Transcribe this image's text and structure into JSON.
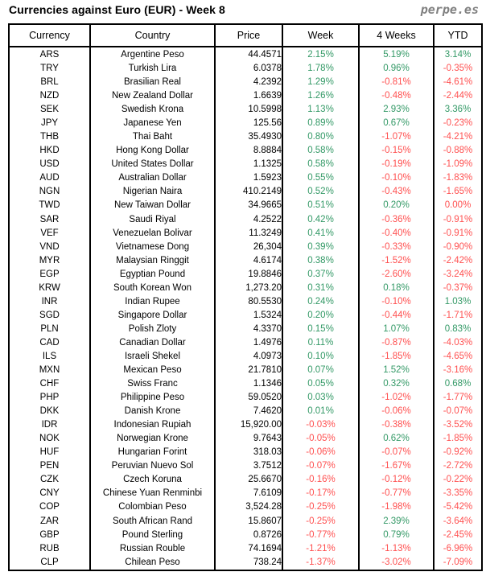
{
  "header": {
    "title": "Currencies against Euro (EUR) - Week 8",
    "logo": "perpe.es"
  },
  "colors": {
    "positive_green": "#339966",
    "negative_red": "#FF5050",
    "text": "#000000",
    "border": "#000000",
    "logo_gray": "#808080",
    "background": "#ffffff"
  },
  "chart_data": {
    "type": "table",
    "title": "Currencies against Euro (EUR) - Week 8",
    "columns": [
      "Currency",
      "Country",
      "Price",
      "Week",
      "4 Weeks",
      "YTD"
    ],
    "color_key": "7th item per row = text colors of Week / 4 Weeks / YTD cells: g=green positive, r=red negative (0.00% shown red)",
    "rows": [
      [
        "ARS",
        "Argentine Peso",
        "44.4571",
        "2.15%",
        "5.19%",
        "3.14%",
        "ggg"
      ],
      [
        "TRY",
        "Turkish Lira",
        "6.0378",
        "1.78%",
        "0.96%",
        "-0.35%",
        "ggr"
      ],
      [
        "BRL",
        "Brasilian Real",
        "4.2392",
        "1.29%",
        "-0.81%",
        "-4.61%",
        "grr"
      ],
      [
        "NZD",
        "New Zealand Dollar",
        "1.6639",
        "1.26%",
        "-0.48%",
        "-2.44%",
        "grr"
      ],
      [
        "SEK",
        "Swedish Krona",
        "10.5998",
        "1.13%",
        "2.93%",
        "3.36%",
        "ggg"
      ],
      [
        "JPY",
        "Japanese Yen",
        "125.56",
        "0.89%",
        "0.67%",
        "-0.23%",
        "ggr"
      ],
      [
        "THB",
        "Thai Baht",
        "35.4930",
        "0.80%",
        "-1.07%",
        "-4.21%",
        "grr"
      ],
      [
        "HKD",
        "Hong Kong Dollar",
        "8.8884",
        "0.58%",
        "-0.15%",
        "-0.88%",
        "grr"
      ],
      [
        "USD",
        "United States Dollar",
        "1.1325",
        "0.58%",
        "-0.19%",
        "-1.09%",
        "grr"
      ],
      [
        "AUD",
        "Australian Dollar",
        "1.5923",
        "0.55%",
        "-0.10%",
        "-1.83%",
        "grr"
      ],
      [
        "NGN",
        "Nigerian Naira",
        "410.2149",
        "0.52%",
        "-0.43%",
        "-1.65%",
        "grr"
      ],
      [
        "TWD",
        "New Taiwan Dollar",
        "34.9665",
        "0.51%",
        "0.20%",
        "0.00%",
        "ggr"
      ],
      [
        "SAR",
        "Saudi Riyal",
        "4.2522",
        "0.42%",
        "-0.36%",
        "-0.91%",
        "grr"
      ],
      [
        "VEF",
        "Venezuelan Bolivar",
        "11.3249",
        "0.41%",
        "-0.40%",
        "-0.91%",
        "grr"
      ],
      [
        "VND",
        "Vietnamese Dong",
        "26,304",
        "0.39%",
        "-0.33%",
        "-0.90%",
        "grr"
      ],
      [
        "MYR",
        "Malaysian Ringgit",
        "4.6174",
        "0.38%",
        "-1.52%",
        "-2.42%",
        "grr"
      ],
      [
        "EGP",
        "Egyptian Pound",
        "19.8846",
        "0.37%",
        "-2.60%",
        "-3.24%",
        "grr"
      ],
      [
        "KRW",
        "South Korean Won",
        "1,273.20",
        "0.31%",
        "0.18%",
        "-0.37%",
        "ggr"
      ],
      [
        "INR",
        "Indian Rupee",
        "80.5530",
        "0.24%",
        "-0.10%",
        "1.03%",
        "grg"
      ],
      [
        "SGD",
        "Singapore Dollar",
        "1.5324",
        "0.20%",
        "-0.44%",
        "-1.71%",
        "grr"
      ],
      [
        "PLN",
        "Polish Zloty",
        "4.3370",
        "0.15%",
        "1.07%",
        "0.83%",
        "ggg"
      ],
      [
        "CAD",
        "Canadian Dollar",
        "1.4976",
        "0.11%",
        "-0.87%",
        "-4.03%",
        "grr"
      ],
      [
        "ILS",
        "Israeli Shekel",
        "4.0973",
        "0.10%",
        "-1.85%",
        "-4.65%",
        "grr"
      ],
      [
        "MXN",
        "Mexican Peso",
        "21.7810",
        "0.07%",
        "1.52%",
        "-3.16%",
        "ggr"
      ],
      [
        "CHF",
        "Swiss Franc",
        "1.1346",
        "0.05%",
        "0.32%",
        "0.68%",
        "ggg"
      ],
      [
        "PHP",
        "Philippine Peso",
        "59.0520",
        "0.03%",
        "-1.02%",
        "-1.77%",
        "grr"
      ],
      [
        "DKK",
        "Danish Krone",
        "7.4620",
        "0.01%",
        "-0.06%",
        "-0.07%",
        "grr"
      ],
      [
        "IDR",
        "Indonesian Rupiah",
        "15,920.00",
        "-0.03%",
        "-0.38%",
        "-3.52%",
        "rrr"
      ],
      [
        "NOK",
        "Norwegian Krone",
        "9.7643",
        "-0.05%",
        "0.62%",
        "-1.85%",
        "rgr"
      ],
      [
        "HUF",
        "Hungarian Forint",
        "318.03",
        "-0.06%",
        "-0.07%",
        "-0.92%",
        "rrr"
      ],
      [
        "PEN",
        "Peruvian Nuevo Sol",
        "3.7512",
        "-0.07%",
        "-1.67%",
        "-2.72%",
        "rrr"
      ],
      [
        "CZK",
        "Czech Koruna",
        "25.6670",
        "-0.16%",
        "-0.12%",
        "-0.22%",
        "rrr"
      ],
      [
        "CNY",
        "Chinese Yuan Renminbi",
        "7.6109",
        "-0.17%",
        "-0.77%",
        "-3.35%",
        "rrr"
      ],
      [
        "COP",
        "Colombian Peso",
        "3,524.28",
        "-0.25%",
        "-1.98%",
        "-5.42%",
        "rrr"
      ],
      [
        "ZAR",
        "South African Rand",
        "15.8607",
        "-0.25%",
        "2.39%",
        "-3.64%",
        "rgr"
      ],
      [
        "GBP",
        "Pound Sterling",
        "0.8726",
        "-0.77%",
        "0.79%",
        "-2.45%",
        "rgr"
      ],
      [
        "RUB",
        "Russian Rouble",
        "74.1694",
        "-1.21%",
        "-1.13%",
        "-6.96%",
        "rrr"
      ],
      [
        "CLP",
        "Chilean Peso",
        "738.24",
        "-1.37%",
        "-3.02%",
        "-7.09%",
        "rrr"
      ]
    ]
  }
}
